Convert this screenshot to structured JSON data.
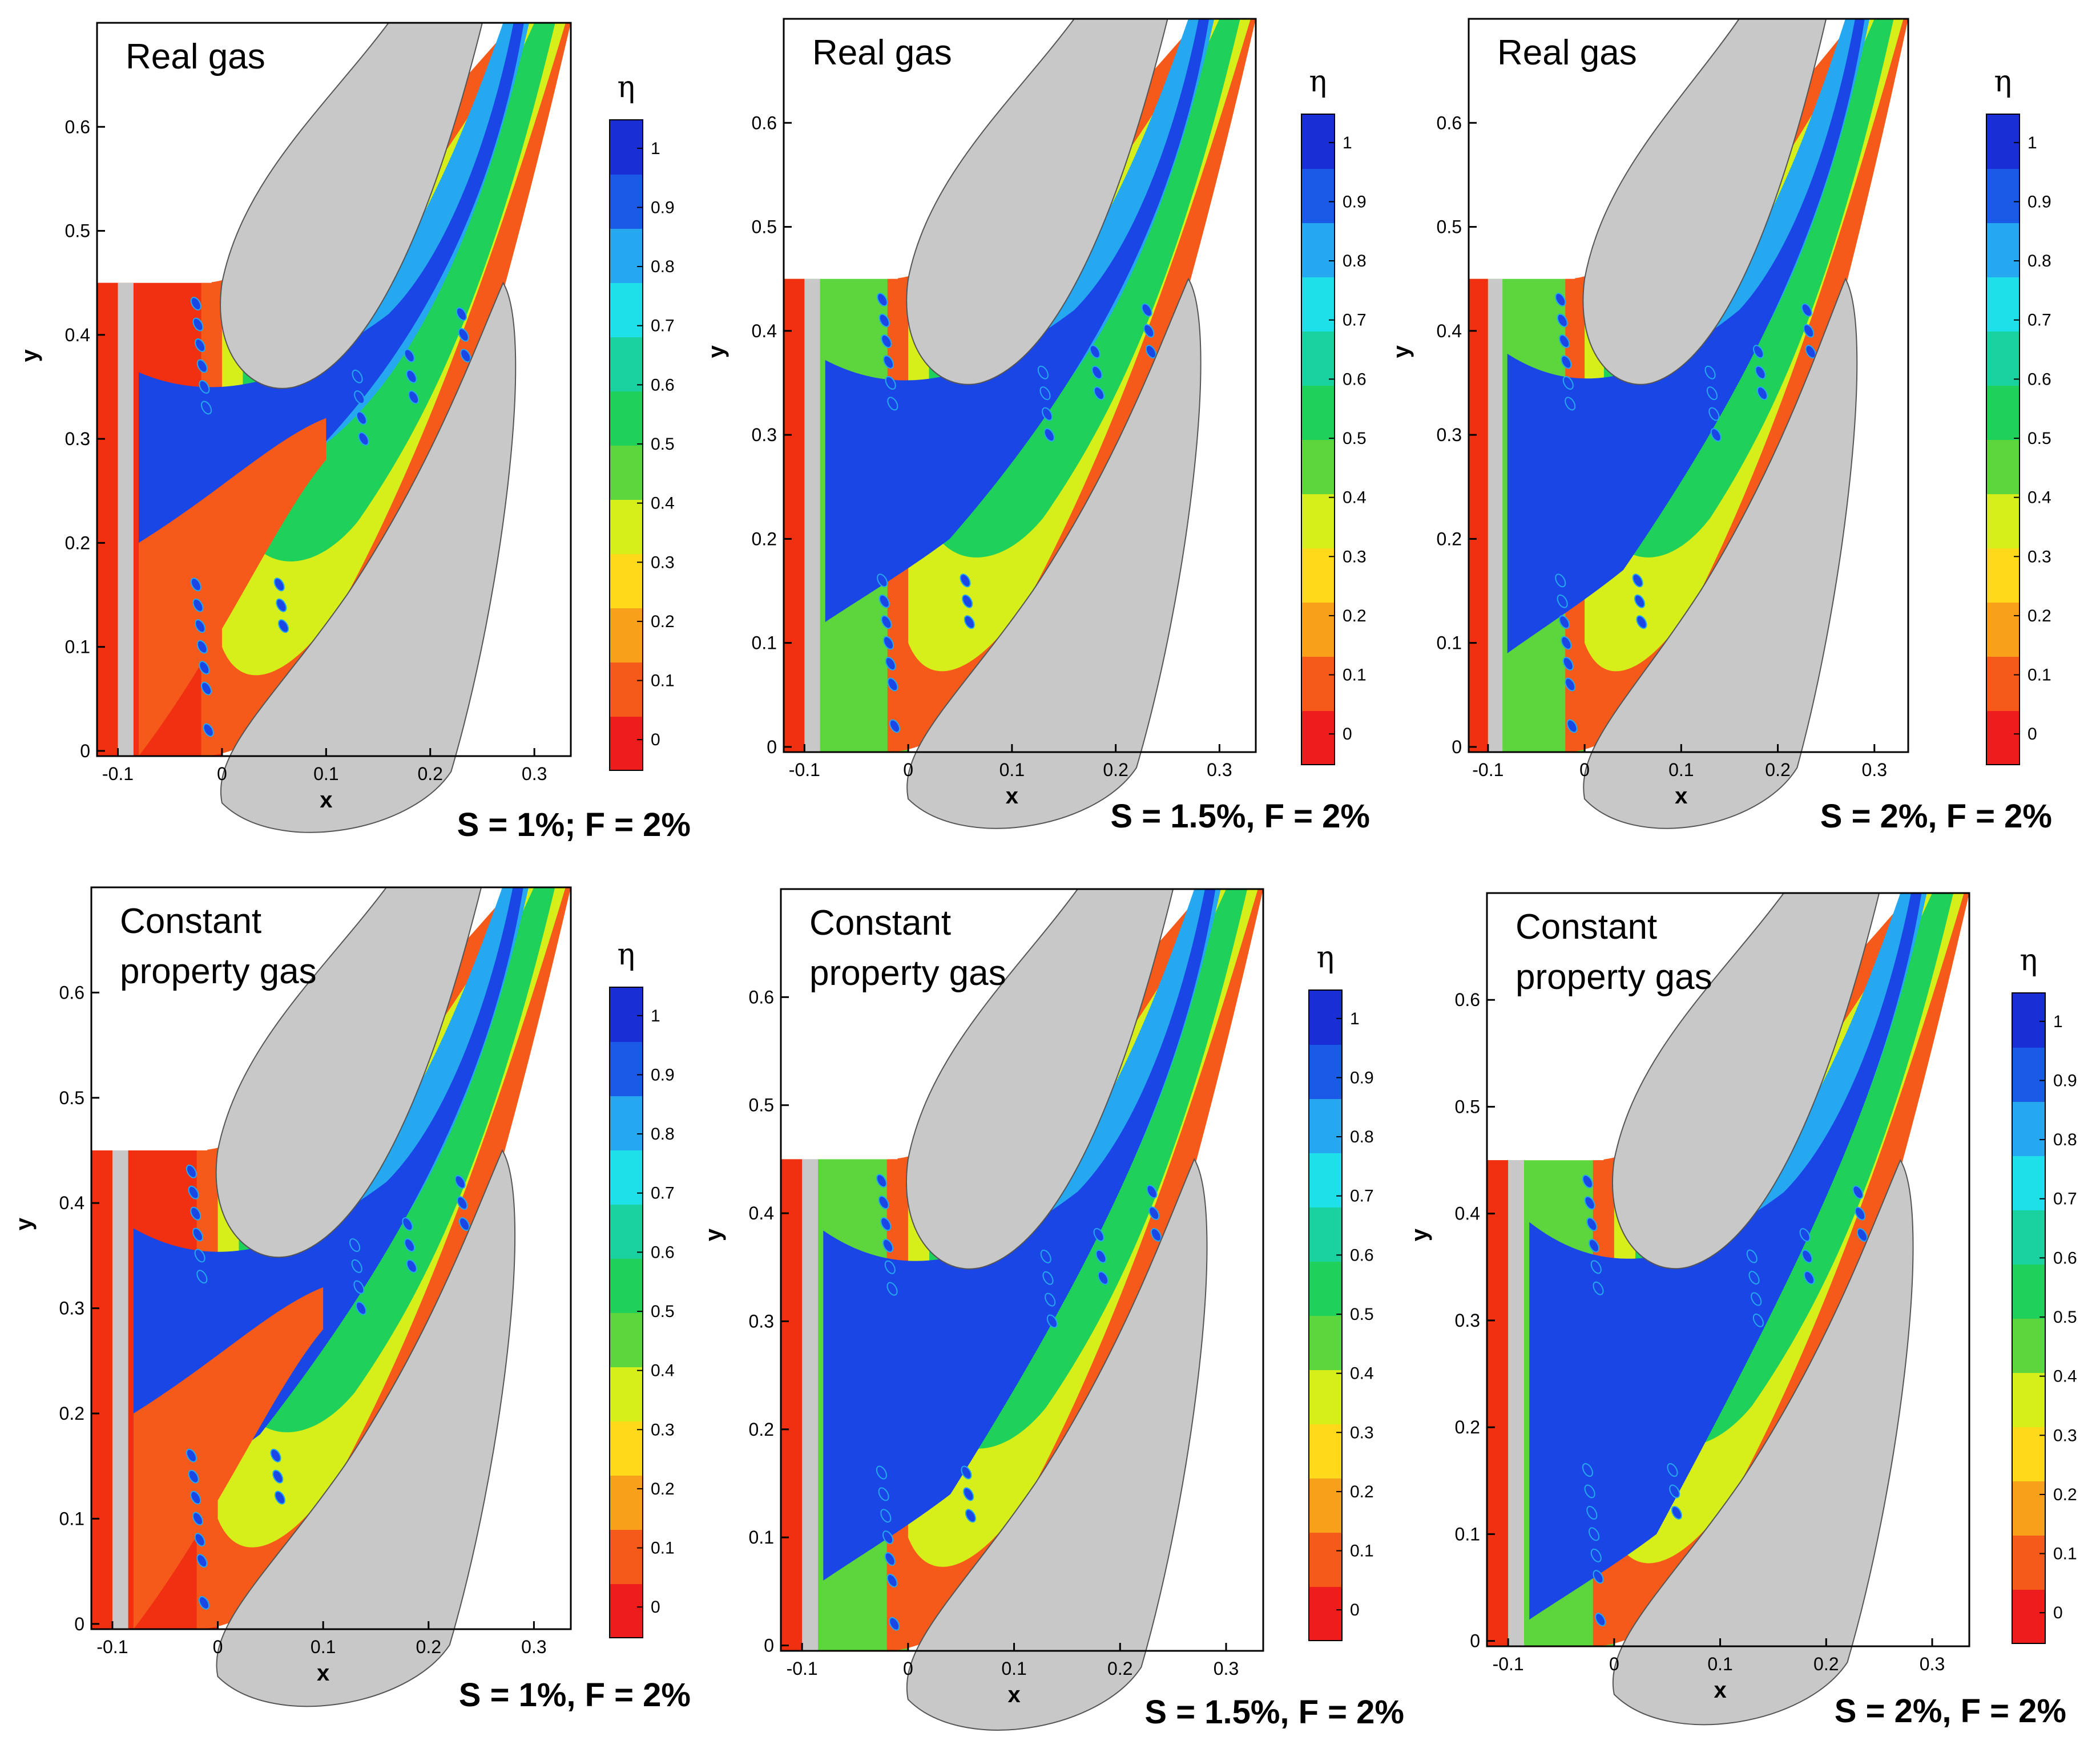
{
  "chart_data": [
    {
      "type": "contour",
      "title": "Real gas",
      "caption": "S = 1%; F = 2%",
      "xlabel": "x",
      "ylabel": "y",
      "xlim": [
        -0.12,
        0.335
      ],
      "ylim": [
        -0.005,
        0.7
      ],
      "xticks": [
        "-0.1",
        "0",
        "0.1",
        "0.2",
        "0.3"
      ],
      "yticks": [
        "0",
        "0.1",
        "0.2",
        "0.3",
        "0.4",
        "0.5",
        "0.6"
      ],
      "colorbar": {
        "title": "η",
        "ticks": [
          "0",
          "0.1",
          "0.2",
          "0.3",
          "0.4",
          "0.5",
          "0.6",
          "0.7",
          "0.8",
          "0.9",
          "1"
        ],
        "range": [
          0,
          1
        ]
      }
    },
    {
      "type": "contour",
      "title": "Real gas",
      "caption": "S = 1.5%, F = 2%",
      "xlabel": "x",
      "ylabel": "y",
      "xlim": [
        -0.12,
        0.335
      ],
      "ylim": [
        -0.005,
        0.7
      ],
      "xticks": [
        "-0.1",
        "0",
        "0.1",
        "0.2",
        "0.3"
      ],
      "yticks": [
        "0",
        "0.1",
        "0.2",
        "0.3",
        "0.4",
        "0.5",
        "0.6"
      ],
      "colorbar": {
        "title": "η",
        "ticks": [
          "0",
          "0.1",
          "0.2",
          "0.3",
          "0.4",
          "0.5",
          "0.6",
          "0.7",
          "0.8",
          "0.9",
          "1"
        ],
        "range": [
          0,
          1
        ]
      }
    },
    {
      "type": "contour",
      "title": "Real gas",
      "caption": "S = 2%, F = 2%",
      "xlabel": "x",
      "ylabel": "y",
      "xlim": [
        -0.12,
        0.335
      ],
      "ylim": [
        -0.005,
        0.7
      ],
      "xticks": [
        "-0.1",
        "0",
        "0.1",
        "0.2",
        "0.3"
      ],
      "yticks": [
        "0",
        "0.1",
        "0.2",
        "0.3",
        "0.4",
        "0.5",
        "0.6"
      ],
      "colorbar": {
        "title": "η",
        "ticks": [
          "0",
          "0.1",
          "0.2",
          "0.3",
          "0.4",
          "0.5",
          "0.6",
          "0.7",
          "0.8",
          "0.9",
          "1"
        ],
        "range": [
          0,
          1
        ]
      }
    },
    {
      "type": "contour",
      "title": "Constant property gas",
      "title_lines": [
        "Constant",
        "property gas"
      ],
      "caption": "S = 1%, F = 2%",
      "xlabel": "x",
      "ylabel": "y",
      "xlim": [
        -0.12,
        0.335
      ],
      "ylim": [
        -0.005,
        0.7
      ],
      "xticks": [
        "-0.1",
        "0",
        "0.1",
        "0.2",
        "0.3"
      ],
      "yticks": [
        "0",
        "0.1",
        "0.2",
        "0.3",
        "0.4",
        "0.5",
        "0.6"
      ],
      "colorbar": {
        "title": "η",
        "ticks": [
          "0",
          "0.1",
          "0.2",
          "0.3",
          "0.4",
          "0.5",
          "0.6",
          "0.7",
          "0.8",
          "0.9",
          "1"
        ],
        "range": [
          0,
          1
        ]
      }
    },
    {
      "type": "contour",
      "title": "Constant property gas",
      "title_lines": [
        "Constant",
        "property gas"
      ],
      "caption": "S = 1.5%, F = 2%",
      "xlabel": "x",
      "ylabel": "y",
      "xlim": [
        -0.12,
        0.335
      ],
      "ylim": [
        -0.005,
        0.7
      ],
      "xticks": [
        "-0.1",
        "0",
        "0.1",
        "0.2",
        "0.3"
      ],
      "yticks": [
        "0",
        "0.1",
        "0.2",
        "0.3",
        "0.4",
        "0.5",
        "0.6"
      ],
      "colorbar": {
        "title": "η",
        "ticks": [
          "0",
          "0.1",
          "0.2",
          "0.3",
          "0.4",
          "0.5",
          "0.6",
          "0.7",
          "0.8",
          "0.9",
          "1"
        ],
        "range": [
          0,
          1
        ]
      }
    },
    {
      "type": "contour",
      "title": "Constant property gas",
      "title_lines": [
        "Constant",
        "property gas"
      ],
      "caption": "S = 2%, F = 2%",
      "xlabel": "x",
      "ylabel": "y",
      "xlim": [
        -0.12,
        0.335
      ],
      "ylim": [
        -0.005,
        0.7
      ],
      "xticks": [
        "-0.1",
        "0",
        "0.1",
        "0.2",
        "0.3"
      ],
      "yticks": [
        "0",
        "0.1",
        "0.2",
        "0.3",
        "0.4",
        "0.5",
        "0.6"
      ],
      "colorbar": {
        "title": "η",
        "ticks": [
          "0",
          "0.1",
          "0.2",
          "0.3",
          "0.4",
          "0.5",
          "0.6",
          "0.7",
          "0.8",
          "0.9",
          "1"
        ],
        "range": [
          0,
          1
        ]
      }
    }
  ],
  "colors": {
    "scale": [
      "#ee1c1c",
      "#f55a1a",
      "#f9a01a",
      "#ffd91a",
      "#d6ef1a",
      "#5cd63c",
      "#1fd15a",
      "#1ad1a0",
      "#1ee0e8",
      "#25a8f0",
      "#1a5ae6",
      "#1a2ed6"
    ],
    "blade": "#c8c8c8",
    "cavity": "#f03010",
    "core": "#1a46e6"
  }
}
